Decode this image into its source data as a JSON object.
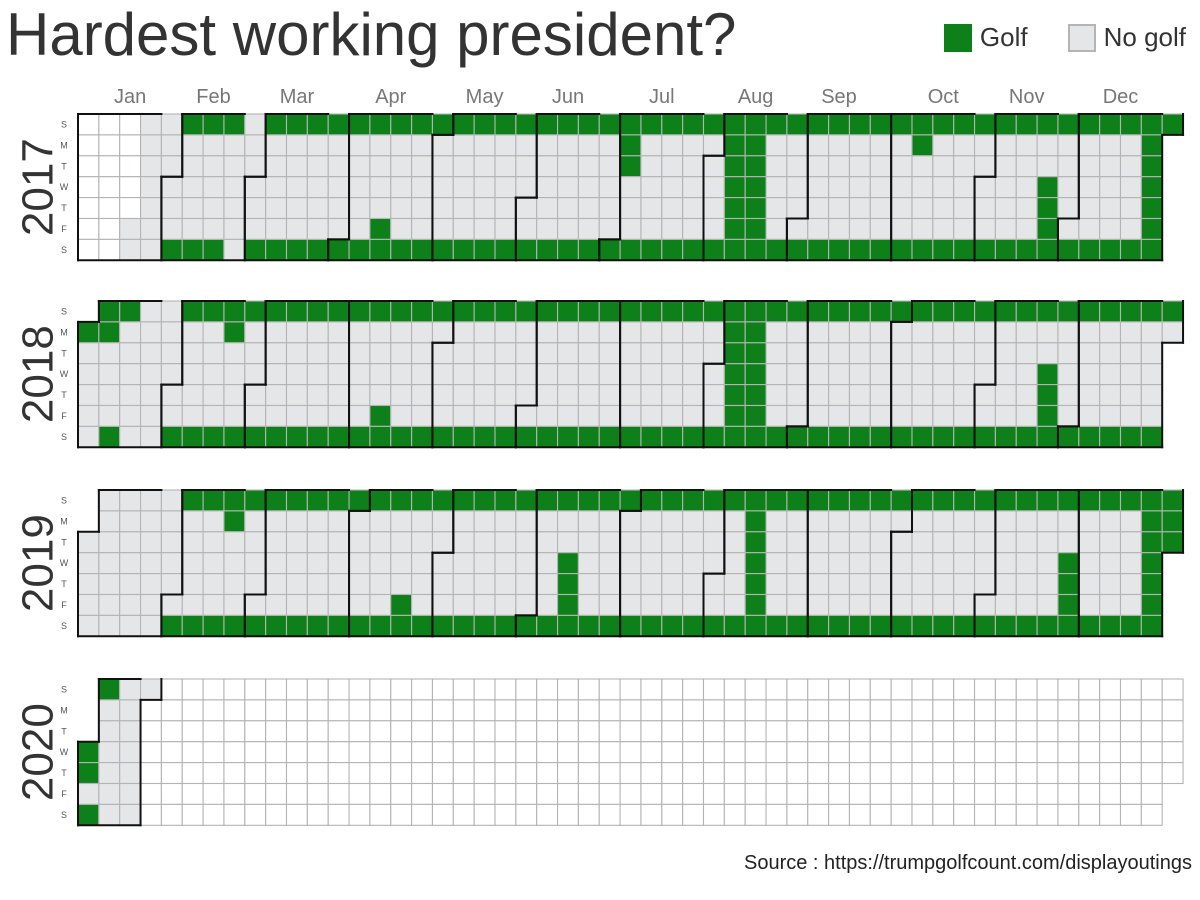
{
  "title": "Hardest working president?",
  "source": "Source : https://trumpgolfcount.com/displayoutings",
  "legend": [
    {
      "label": "Golf",
      "color": "#0e8019"
    },
    {
      "label": "No golf",
      "color": "#e5e6e8"
    }
  ],
  "chart_data": {
    "type": "heatmap",
    "title": "Hardest working president?",
    "layout": "calendar",
    "x": "week of year",
    "y": "day of week",
    "months": [
      "Jan",
      "Feb",
      "Mar",
      "Apr",
      "May",
      "Jun",
      "Jul",
      "Aug",
      "Sep",
      "Oct",
      "Nov",
      "Dec"
    ],
    "weekdays": [
      "S",
      "M",
      "T",
      "W",
      "T",
      "F",
      "S"
    ],
    "colors": {
      "golf": "#0e8019",
      "no_golf": "#e5e6e8",
      "future": "#ffffff",
      "grid": "#b4b4b4",
      "month_border": "#111111"
    },
    "legend_position": "top-right",
    "series": [
      {
        "year": "2017",
        "days_in_year": 365,
        "start_weekday": 0,
        "first_recorded_day": 20,
        "golf_dates": [
          "02-04",
          "02-05",
          "02-11",
          "02-12",
          "02-18",
          "02-19",
          "03-04",
          "03-05",
          "03-11",
          "03-12",
          "03-18",
          "03-19",
          "03-25",
          "03-26",
          "04-01",
          "04-02",
          "04-08",
          "04-09",
          "04-14",
          "04-15",
          "04-16",
          "04-22",
          "04-23",
          "04-29",
          "04-30",
          "05-06",
          "05-07",
          "05-13",
          "05-14",
          "05-20",
          "05-21",
          "05-27",
          "05-28",
          "06-03",
          "06-04",
          "06-10",
          "06-11",
          "06-17",
          "06-18",
          "06-24",
          "06-25",
          "07-01",
          "07-02",
          "07-03",
          "07-04",
          "07-08",
          "07-09",
          "07-15",
          "07-16",
          "07-22",
          "07-23",
          "07-29",
          "07-30",
          "08-05",
          "08-06",
          "08-07",
          "08-08",
          "08-09",
          "08-10",
          "08-11",
          "08-12",
          "08-13",
          "08-14",
          "08-15",
          "08-16",
          "08-17",
          "08-18",
          "08-19",
          "08-20",
          "08-26",
          "08-27",
          "09-02",
          "09-03",
          "09-09",
          "09-10",
          "09-16",
          "09-17",
          "09-23",
          "09-24",
          "09-30",
          "10-01",
          "10-07",
          "10-08",
          "10-09",
          "10-14",
          "10-15",
          "10-21",
          "10-22",
          "10-28",
          "10-29",
          "11-04",
          "11-05",
          "11-11",
          "11-12",
          "11-18",
          "11-19",
          "11-22",
          "11-23",
          "11-24",
          "11-25",
          "11-26",
          "12-02",
          "12-03",
          "12-09",
          "12-10",
          "12-16",
          "12-17",
          "12-23",
          "12-24",
          "12-25",
          "12-26",
          "12-27",
          "12-28",
          "12-29",
          "12-30",
          "12-31"
        ]
      },
      {
        "year": "2018",
        "days_in_year": 365,
        "start_weekday": 1,
        "first_recorded_day": 1,
        "golf_dates": [
          "01-01",
          "01-07",
          "01-08",
          "01-13",
          "01-14",
          "02-03",
          "02-04",
          "02-10",
          "02-11",
          "02-17",
          "02-18",
          "02-19",
          "02-24",
          "02-25",
          "03-03",
          "03-04",
          "03-10",
          "03-11",
          "03-17",
          "03-18",
          "03-24",
          "03-25",
          "03-31",
          "04-01",
          "04-07",
          "04-08",
          "04-13",
          "04-14",
          "04-15",
          "04-21",
          "04-22",
          "04-28",
          "04-29",
          "05-05",
          "05-06",
          "05-12",
          "05-13",
          "05-19",
          "05-20",
          "05-26",
          "05-27",
          "06-02",
          "06-03",
          "06-09",
          "06-10",
          "06-16",
          "06-17",
          "06-23",
          "06-24",
          "06-30",
          "07-01",
          "07-07",
          "07-08",
          "07-14",
          "07-15",
          "07-21",
          "07-22",
          "07-28",
          "07-29",
          "08-04",
          "08-05",
          "08-06",
          "08-07",
          "08-08",
          "08-09",
          "08-10",
          "08-11",
          "08-12",
          "08-13",
          "08-14",
          "08-15",
          "08-16",
          "08-17",
          "08-18",
          "08-19",
          "08-25",
          "08-26",
          "09-01",
          "09-02",
          "09-08",
          "09-09",
          "09-15",
          "09-16",
          "09-22",
          "09-23",
          "09-29",
          "09-30",
          "10-06",
          "10-07",
          "10-13",
          "10-14",
          "10-20",
          "10-21",
          "10-27",
          "10-28",
          "11-03",
          "11-04",
          "11-10",
          "11-11",
          "11-17",
          "11-18",
          "11-21",
          "11-22",
          "11-23",
          "11-24",
          "11-25",
          "12-01",
          "12-02",
          "12-08",
          "12-09",
          "12-15",
          "12-16",
          "12-22",
          "12-23",
          "12-29",
          "12-30"
        ]
      },
      {
        "year": "2019",
        "days_in_year": 365,
        "start_weekday": 2,
        "first_recorded_day": 1,
        "golf_dates": [
          "02-02",
          "02-03",
          "02-09",
          "02-10",
          "02-16",
          "02-17",
          "02-18",
          "02-23",
          "02-24",
          "03-02",
          "03-03",
          "03-09",
          "03-10",
          "03-16",
          "03-17",
          "03-23",
          "03-24",
          "03-30",
          "03-31",
          "04-06",
          "04-07",
          "04-13",
          "04-14",
          "04-19",
          "04-20",
          "04-21",
          "04-27",
          "04-28",
          "05-04",
          "05-05",
          "05-11",
          "05-12",
          "05-18",
          "05-19",
          "05-25",
          "05-26",
          "06-01",
          "06-02",
          "06-08",
          "06-09",
          "06-12",
          "06-13",
          "06-14",
          "06-15",
          "06-16",
          "06-22",
          "06-23",
          "06-29",
          "06-30",
          "07-06",
          "07-07",
          "07-13",
          "07-14",
          "07-20",
          "07-21",
          "07-27",
          "07-28",
          "08-03",
          "08-04",
          "08-10",
          "08-11",
          "08-12",
          "08-13",
          "08-14",
          "08-15",
          "08-16",
          "08-17",
          "08-18",
          "08-24",
          "08-25",
          "08-31",
          "09-01",
          "09-07",
          "09-08",
          "09-14",
          "09-15",
          "09-21",
          "09-22",
          "09-28",
          "09-29",
          "10-05",
          "10-06",
          "10-12",
          "10-13",
          "10-19",
          "10-20",
          "10-26",
          "10-27",
          "11-02",
          "11-03",
          "11-09",
          "11-10",
          "11-16",
          "11-17",
          "11-23",
          "11-24",
          "11-27",
          "11-28",
          "11-29",
          "11-30",
          "12-01",
          "12-07",
          "12-08",
          "12-14",
          "12-15",
          "12-21",
          "12-22",
          "12-23",
          "12-24",
          "12-25",
          "12-26",
          "12-27",
          "12-28",
          "12-29",
          "12-30",
          "12-31"
        ]
      },
      {
        "year": "2020",
        "days_in_year": 366,
        "start_weekday": 3,
        "first_recorded_day": 1,
        "last_recorded_day": 19,
        "golf_dates": [
          "01-01",
          "01-02",
          "01-04",
          "01-05"
        ]
      }
    ]
  }
}
